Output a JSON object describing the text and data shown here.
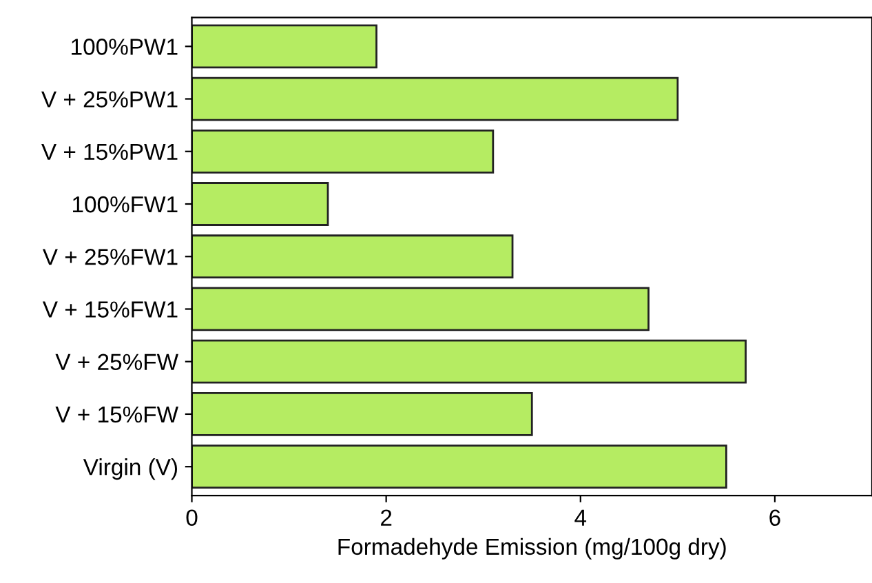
{
  "chart_data": {
    "type": "bar",
    "orientation": "horizontal",
    "xlabel": "Formadehyde Emission (mg/100g dry)",
    "categories": [
      "100%PW1",
      "V + 25%PW1",
      "V + 15%PW1",
      "100%FW1",
      "V + 25%FW1",
      "V + 15%FW1",
      "V + 25%FW",
      "V + 15%FW",
      "Virgin (V)"
    ],
    "values": [
      1.9,
      5.0,
      3.1,
      1.4,
      3.3,
      4.7,
      5.7,
      3.5,
      5.5
    ],
    "color": "#b5ec62",
    "xlim": [
      0,
      7
    ],
    "xticks": [
      0,
      2,
      4,
      6
    ]
  }
}
